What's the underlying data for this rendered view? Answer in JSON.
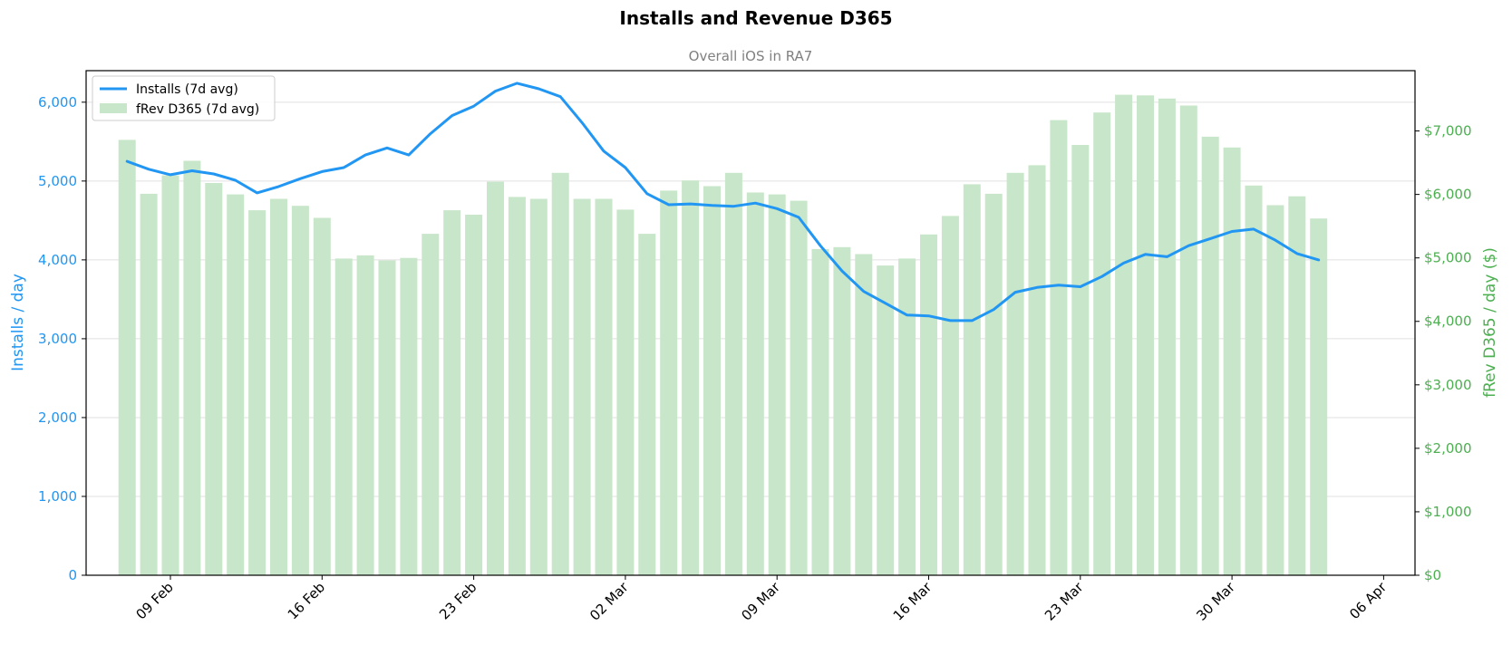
{
  "chart_data": {
    "type": "bar+line",
    "title": "Installs and Revenue D365",
    "subtitle": "Overall iOS in RA7",
    "ylabel_left": "Installs / day",
    "ylabel_right": "fRev D365 / day ($)",
    "ylim_left": [
      0,
      6400
    ],
    "ylim_right": [
      0,
      7950
    ],
    "yticks_left": [
      "0",
      "1,000",
      "2,000",
      "3,000",
      "4,000",
      "5,000",
      "6,000"
    ],
    "yticks_right": [
      "$0",
      "$1,000",
      "$2,000",
      "$3,000",
      "$4,000",
      "$5,000",
      "$6,000",
      "$7,000"
    ],
    "xticks": [
      "09 Feb",
      "16 Feb",
      "23 Feb",
      "02 Mar",
      "09 Mar",
      "16 Mar",
      "23 Mar",
      "30 Mar",
      "06 Apr"
    ],
    "x_start": "2026-02-07",
    "grid": "horizontal",
    "legend_position": "top-left",
    "colors": {
      "installs": "#2196f3",
      "revenue": "#c8e6c9",
      "left_axis": "#2196f3",
      "right_axis": "#4caf50"
    },
    "series": [
      {
        "name": "Installs (7d avg)",
        "kind": "line",
        "axis": "left",
        "values": [
          5250,
          5150,
          5080,
          5130,
          5090,
          5010,
          4850,
          4930,
          5030,
          5120,
          5170,
          5330,
          5420,
          5330,
          5600,
          5830,
          5950,
          6140,
          6240,
          6170,
          6070,
          5740,
          5380,
          5170,
          4840,
          4700,
          4710,
          4690,
          4680,
          4720,
          4650,
          4540,
          4180,
          3860,
          3600,
          3450,
          3300,
          3290,
          3230,
          3230,
          3370,
          3590,
          3650,
          3680,
          3660,
          3790,
          3960,
          4070,
          4040,
          4180,
          4270,
          4360,
          4390,
          4250,
          4080,
          4000
        ]
      },
      {
        "name": "fRev D365 (7d avg)",
        "kind": "bar",
        "axis": "right",
        "values": [
          6860,
          6010,
          6300,
          6530,
          6180,
          6000,
          5750,
          5930,
          5820,
          5630,
          4990,
          5040,
          4960,
          5000,
          5380,
          5750,
          5680,
          6200,
          5960,
          5930,
          6340,
          5930,
          5930,
          5760,
          5380,
          6060,
          6220,
          6130,
          6340,
          6030,
          6000,
          5900,
          5140,
          5170,
          5060,
          4880,
          4990,
          5370,
          5660,
          6160,
          6010,
          6340,
          6460,
          7170,
          6780,
          7290,
          7570,
          7560,
          7510,
          7400,
          6910,
          6740,
          6140,
          5830,
          5970,
          5620
        ]
      }
    ]
  }
}
